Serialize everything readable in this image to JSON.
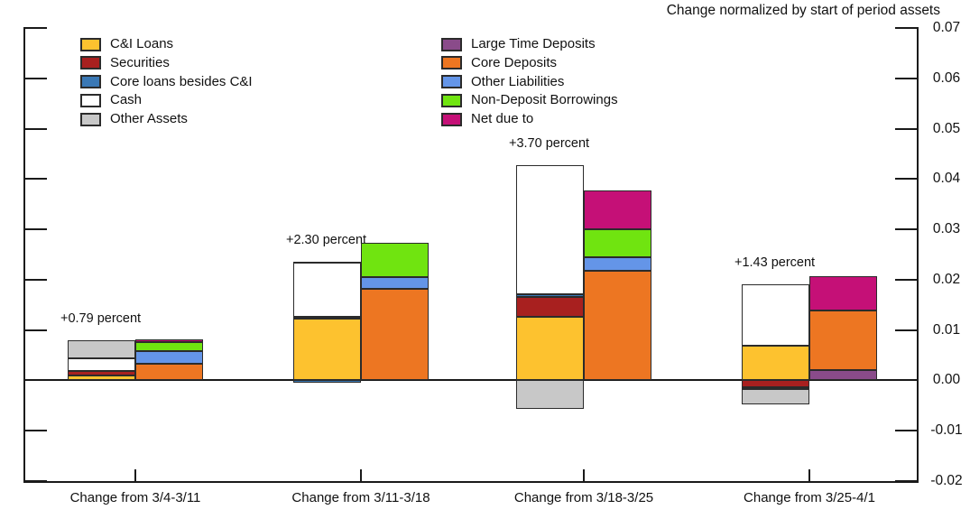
{
  "chart_data": {
    "type": "bar",
    "title": "Change normalized by start of period assets",
    "categories": [
      "Change from 3/4-3/11",
      "Change from 3/11-3/18",
      "Change from 3/18-3/25",
      "Change from 3/25-4/1"
    ],
    "annotations": [
      "+0.79 percent",
      "+2.30 percent",
      "+3.70 percent",
      "+1.43 percent"
    ],
    "ylim": [
      -0.02,
      0.07
    ],
    "y_tick_labels": [
      "0.07",
      "0.06",
      "0.05",
      "0.04",
      "0.03",
      "0.02",
      "0.01",
      "0.00",
      "-0.01",
      "-0.02"
    ],
    "grid": false,
    "legend_position": "top-left, two columns (assets left, liabilities right)",
    "bar_style": "paired stacked bars per category: left = assets, right = liabilities",
    "series": [
      {
        "name": "C&I Loans",
        "side": "assets",
        "color": "#FDC22F",
        "values": [
          0.001,
          0.0122,
          0.0126,
          0.0069
        ]
      },
      {
        "name": "Securities",
        "side": "assets",
        "color": "#A8201F",
        "values": [
          0.0009,
          0.0005,
          0.0039,
          -0.0014
        ]
      },
      {
        "name": "Core loans besides C&I",
        "side": "assets",
        "color": "#3A78B5",
        "values": [
          0.0,
          -0.0005,
          0.0006,
          -0.0004
        ]
      },
      {
        "name": "Cash",
        "side": "assets",
        "color": "#FFFFFF",
        "values": [
          0.0024,
          0.0106,
          0.0256,
          0.0121
        ]
      },
      {
        "name": "Other Assets",
        "side": "assets",
        "color": "#C8C8C8",
        "values": [
          0.0036,
          0.0003,
          -0.0057,
          -0.0029
        ]
      },
      {
        "name": "Large Time Deposits",
        "side": "liabilities",
        "color": "#8A4B8A",
        "values": [
          0.0,
          0.0,
          0.0,
          0.002
        ]
      },
      {
        "name": "Core Deposits",
        "side": "liabilities",
        "color": "#ED7622",
        "values": [
          0.0033,
          0.0181,
          0.0218,
          0.0118
        ]
      },
      {
        "name": "Other Liabilities",
        "side": "liabilities",
        "color": "#6495E8",
        "values": [
          0.0026,
          0.0025,
          0.0027,
          0.0
        ]
      },
      {
        "name": "Non-Deposit Borrowings",
        "side": "liabilities",
        "color": "#70E410",
        "values": [
          0.0017,
          0.0068,
          0.0055,
          0.0
        ]
      },
      {
        "name": "Net due to",
        "side": "liabilities",
        "color": "#C51077",
        "values": [
          0.0005,
          0.0,
          0.0078,
          0.0069
        ]
      }
    ]
  }
}
